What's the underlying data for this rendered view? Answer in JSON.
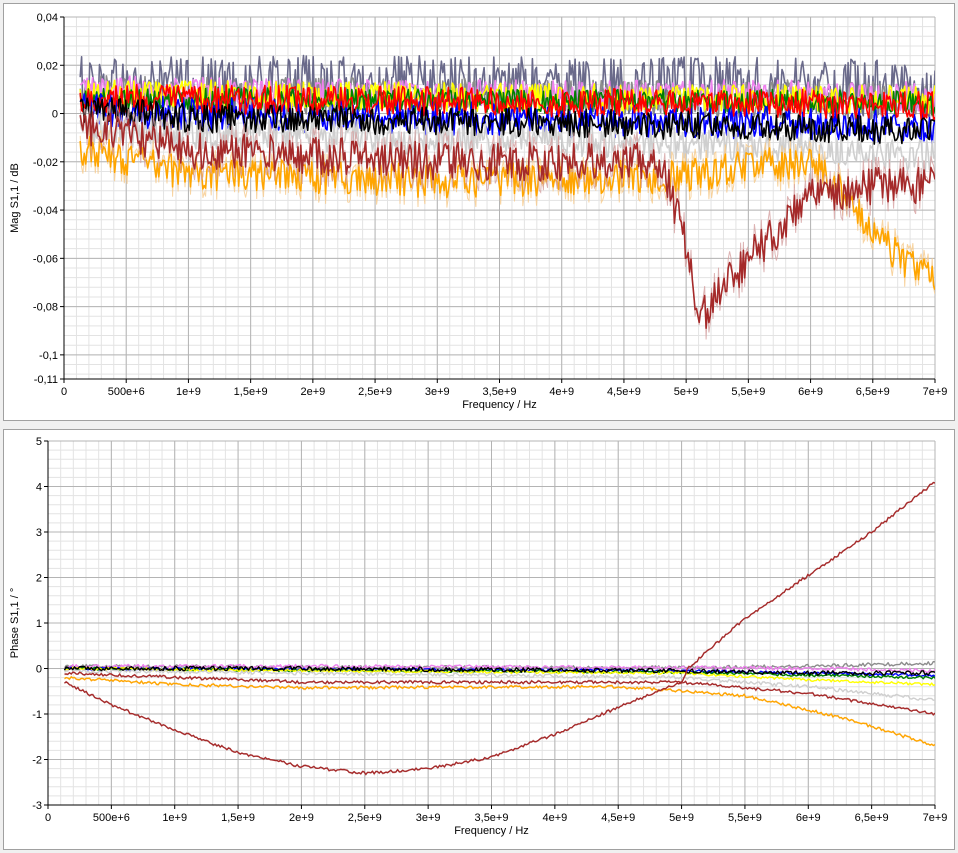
{
  "colors": {
    "grid_major": "#b4b4b4",
    "grid_minor": "#e3e3e3",
    "axis": "#000000",
    "black": "#000000",
    "gray": "#8c8c8c",
    "lightgray": "#cfcfcf",
    "violet": "#ee82ee",
    "blue": "#0000ff",
    "red": "#ff0000",
    "yellow": "#ffff00",
    "green": "#008000",
    "slate": "#6a6a8a",
    "orange": "#ffa500",
    "brown": "#a52a2a",
    "brown_light": "#d4a0a0"
  },
  "chart_data": [
    {
      "type": "line",
      "xlabel": "Frequency / Hz",
      "ylabel": "Mag S1,1 / dB",
      "xlim": [
        0,
        7000000000
      ],
      "ylim": [
        -0.11,
        0.04
      ],
      "x_ticks": [
        0,
        500000000,
        1000000000,
        1500000000,
        2000000000,
        2500000000,
        3000000000,
        3500000000,
        4000000000,
        4500000000,
        5000000000,
        5500000000,
        6000000000,
        6500000000,
        7000000000
      ],
      "x_tick_labels": [
        "0",
        "500e+6",
        "1e+9",
        "1,5e+9",
        "2e+9",
        "2,5e+9",
        "3e+9",
        "3,5e+9",
        "4e+9",
        "4,5e+9",
        "5e+9",
        "5,5e+9",
        "6e+9",
        "6,5e+9",
        "7e+9"
      ],
      "y_ticks": [
        0.04,
        0.02,
        0,
        -0.02,
        -0.04,
        -0.06,
        -0.08,
        -0.1,
        -0.11
      ],
      "y_tick_labels": [
        "0,04",
        "0,02",
        "0",
        "-0,02",
        "-0,04",
        "-0,06",
        "-0,08",
        "-0,1",
        "-0,11"
      ],
      "grid": true,
      "series": [
        {
          "color_key": "slate",
          "noise": 0.012,
          "x": [
            130000000.0,
            1000000000.0,
            3000000000.0,
            5000000000.0,
            6000000000.0,
            7000000000.0
          ],
          "y": [
            0.012,
            0.012,
            0.012,
            0.012,
            0.011,
            0.01
          ]
        },
        {
          "color_key": "gray",
          "noise": 0.008,
          "x": [
            130000000.0,
            1000000000.0,
            3000000000.0,
            5000000000.0,
            6000000000.0,
            7000000000.0
          ],
          "y": [
            0.008,
            0.007,
            0.007,
            0.006,
            0.006,
            0.005
          ]
        },
        {
          "color_key": "violet",
          "noise": 0.006,
          "x": [
            130000000.0,
            1000000000.0,
            3000000000.0,
            5000000000.0,
            6000000000.0,
            7000000000.0
          ],
          "y": [
            0.01,
            0.009,
            0.008,
            0.008,
            0.008,
            0.007
          ]
        },
        {
          "color_key": "yellow",
          "noise": 0.006,
          "x": [
            130000000.0,
            1000000000.0,
            3000000000.0,
            5000000000.0,
            6000000000.0,
            7000000000.0
          ],
          "y": [
            0.008,
            0.008,
            0.007,
            0.006,
            0.006,
            0.006
          ]
        },
        {
          "color_key": "green",
          "noise": 0.005,
          "x": [
            130000000.0,
            1000000000.0,
            3000000000.0,
            5000000000.0,
            6000000000.0,
            7000000000.0
          ],
          "y": [
            0.006,
            0.006,
            0.005,
            0.005,
            0.005,
            0.004
          ]
        },
        {
          "color_key": "blue",
          "noise": 0.007,
          "x": [
            130000000.0,
            1000000000.0,
            3000000000.0,
            5000000000.0,
            6000000000.0,
            7000000000.0
          ],
          "y": [
            0.002,
            0.0,
            -0.002,
            -0.004,
            -0.004,
            -0.006
          ]
        },
        {
          "color_key": "red",
          "noise": 0.006,
          "x": [
            130000000.0,
            1000000000.0,
            3000000000.0,
            5000000000.0,
            6000000000.0,
            7000000000.0
          ],
          "y": [
            0.006,
            0.006,
            0.005,
            0.004,
            0.004,
            0.003
          ]
        },
        {
          "color_key": "lightgray",
          "noise": 0.007,
          "x": [
            130000000.0,
            1000000000.0,
            3000000000.0,
            5000000000.0,
            6000000000.0,
            7000000000.0
          ],
          "y": [
            -0.006,
            -0.008,
            -0.01,
            -0.012,
            -0.014,
            -0.018
          ]
        },
        {
          "color_key": "black",
          "noise": 0.006,
          "x": [
            130000000.0,
            1000000000.0,
            3000000000.0,
            5000000000.0,
            6000000000.0,
            7000000000.0
          ],
          "y": [
            0.002,
            -0.002,
            -0.003,
            -0.005,
            -0.006,
            -0.008
          ]
        },
        {
          "color_key": "orange",
          "noise": 0.007,
          "x": [
            130000000.0,
            1000000000.0,
            3000000000.0,
            5000000000.0,
            5500000000.0,
            6000000000.0,
            6300000000.0,
            6600000000.0,
            7000000000.0
          ],
          "y": [
            -0.015,
            -0.025,
            -0.028,
            -0.026,
            -0.022,
            -0.02,
            -0.035,
            -0.055,
            -0.07
          ]
        },
        {
          "color_key": "brown",
          "noise": 0.008,
          "x": [
            130000000.0,
            1000000000.0,
            3000000000.0,
            4800000000.0,
            5000000000.0,
            5100000000.0,
            5500000000.0,
            6000000000.0,
            6500000000.0,
            7000000000.0
          ],
          "y": [
            -0.005,
            -0.015,
            -0.02,
            -0.02,
            -0.055,
            -0.085,
            -0.06,
            -0.035,
            -0.03,
            -0.03
          ]
        }
      ]
    },
    {
      "type": "line",
      "xlabel": "Frequency / Hz",
      "ylabel": "Phase S1,1 / °",
      "xlim": [
        0,
        7000000000
      ],
      "ylim": [
        -3,
        5
      ],
      "x_ticks": [
        0,
        500000000,
        1000000000,
        1500000000,
        2000000000,
        2500000000,
        3000000000,
        3500000000,
        4000000000,
        4500000000,
        5000000000,
        5500000000,
        6000000000,
        6500000000,
        7000000000
      ],
      "x_tick_labels": [
        "0",
        "500e+6",
        "1e+9",
        "1,5e+9",
        "2e+9",
        "2,5e+9",
        "3e+9",
        "3,5e+9",
        "4e+9",
        "4,5e+9",
        "5e+9",
        "5,5e+9",
        "6e+9",
        "6,5e+9",
        "7e+9"
      ],
      "y_ticks": [
        5,
        4,
        3,
        2,
        1,
        0,
        -1,
        -2,
        -3
      ],
      "y_tick_labels": [
        "5",
        "4",
        "3",
        "2",
        "1",
        "0",
        "-1",
        "-2",
        "-3"
      ],
      "grid": true,
      "series": [
        {
          "color_key": "gray",
          "noise": 0.04,
          "x": [
            130000000.0,
            2000000000.0,
            5000000000.0,
            6000000000.0,
            7000000000.0
          ],
          "y": [
            0.05,
            0.03,
            0.02,
            0.05,
            0.12
          ]
        },
        {
          "color_key": "violet",
          "noise": 0.04,
          "x": [
            130000000.0,
            2000000000.0,
            5000000000.0,
            6000000000.0,
            7000000000.0
          ],
          "y": [
            0.05,
            0.05,
            0.02,
            0.0,
            -0.05
          ]
        },
        {
          "color_key": "blue",
          "noise": 0.03,
          "x": [
            130000000.0,
            2000000000.0,
            5000000000.0,
            6000000000.0,
            7000000000.0
          ],
          "y": [
            0.0,
            -0.02,
            -0.05,
            -0.1,
            -0.15
          ]
        },
        {
          "color_key": "green",
          "noise": 0.03,
          "x": [
            130000000.0,
            2000000000.0,
            5000000000.0,
            6000000000.0,
            7000000000.0
          ],
          "y": [
            0.0,
            -0.04,
            -0.08,
            -0.15,
            -0.2
          ]
        },
        {
          "color_key": "yellow",
          "noise": 0.03,
          "x": [
            130000000.0,
            2000000000.0,
            5000000000.0,
            6000000000.0,
            7000000000.0
          ],
          "y": [
            0.0,
            -0.05,
            -0.1,
            -0.25,
            -0.35
          ]
        },
        {
          "color_key": "lightgray",
          "noise": 0.04,
          "x": [
            130000000.0,
            2000000000.0,
            5000000000.0,
            6000000000.0,
            7000000000.0
          ],
          "y": [
            -0.05,
            -0.1,
            -0.2,
            -0.4,
            -0.7
          ]
        },
        {
          "color_key": "black",
          "noise": 0.05,
          "x": [
            130000000.0,
            2000000000.0,
            5000000000.0,
            6000000000.0,
            7000000000.0
          ],
          "y": [
            0.0,
            0.0,
            -0.05,
            -0.1,
            -0.1
          ]
        },
        {
          "color_key": "brown",
          "noise": 0.03,
          "x": [
            130000000.0,
            2000000000.0,
            4000000000.0,
            5000000000.0,
            6000000000.0,
            7000000000.0
          ],
          "y": [
            -0.1,
            -0.3,
            -0.3,
            -0.3,
            -0.55,
            -1.0
          ]
        },
        {
          "color_key": "orange",
          "noise": 0.03,
          "x": [
            130000000.0,
            1000000000.0,
            2000000000.0,
            4500000000.0,
            5500000000.0,
            6300000000.0,
            7000000000.0
          ],
          "y": [
            -0.2,
            -0.35,
            -0.42,
            -0.4,
            -0.6,
            -1.1,
            -1.7
          ]
        },
        {
          "color_key": "brown",
          "noise": 0.03,
          "x": [
            130000000.0,
            500000000.0,
            1000000000.0,
            1500000000.0,
            2000000000.0,
            2500000000.0,
            3000000000.0,
            3500000000.0,
            4000000000.0,
            4500000000.0,
            5000000000.0,
            5050000000.0,
            5500000000.0,
            6000000000.0,
            6500000000.0,
            7000000000.0
          ],
          "y": [
            -0.3,
            -0.8,
            -1.35,
            -1.85,
            -2.15,
            -2.3,
            -2.2,
            -1.95,
            -1.45,
            -0.85,
            -0.3,
            0.0,
            1.1,
            2.05,
            3.0,
            4.1
          ]
        }
      ]
    }
  ]
}
